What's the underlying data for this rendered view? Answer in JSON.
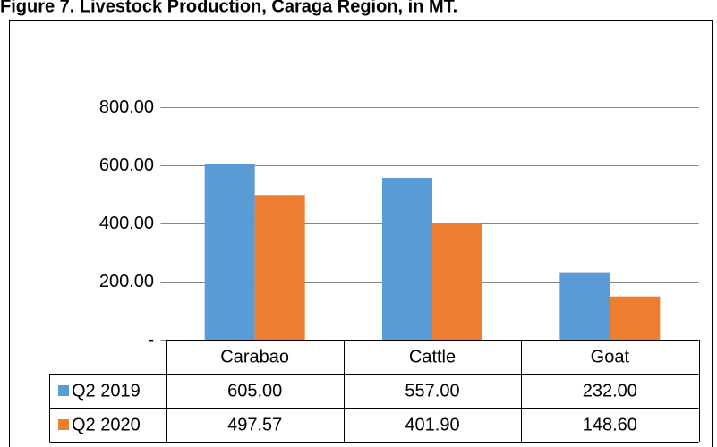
{
  "chart_data": {
    "type": "bar",
    "title": "Figure 7. Livestock Production, Caraga Region, in MT.",
    "categories": [
      "Carabao",
      "Cattle",
      "Goat"
    ],
    "series": [
      {
        "name": "Q2 2019",
        "color": "#5b9bd5",
        "values": [
          605,
          557,
          232
        ],
        "value_labels": [
          "605.00",
          "557.00",
          "232.00"
        ]
      },
      {
        "name": "Q2 2020",
        "color": "#ed7d31",
        "values": [
          497.57,
          401.9,
          148.6
        ],
        "value_labels": [
          "497.57",
          "401.90",
          "148.60"
        ]
      }
    ],
    "ylim": [
      0,
      800
    ],
    "yticks": [
      {
        "value": 0,
        "label": "-"
      },
      {
        "value": 200,
        "label": "200.00"
      },
      {
        "value": 400,
        "label": "400.00"
      },
      {
        "value": 600,
        "label": "600.00"
      },
      {
        "value": 800,
        "label": "800.00"
      }
    ],
    "grid": true,
    "legend": "table"
  }
}
